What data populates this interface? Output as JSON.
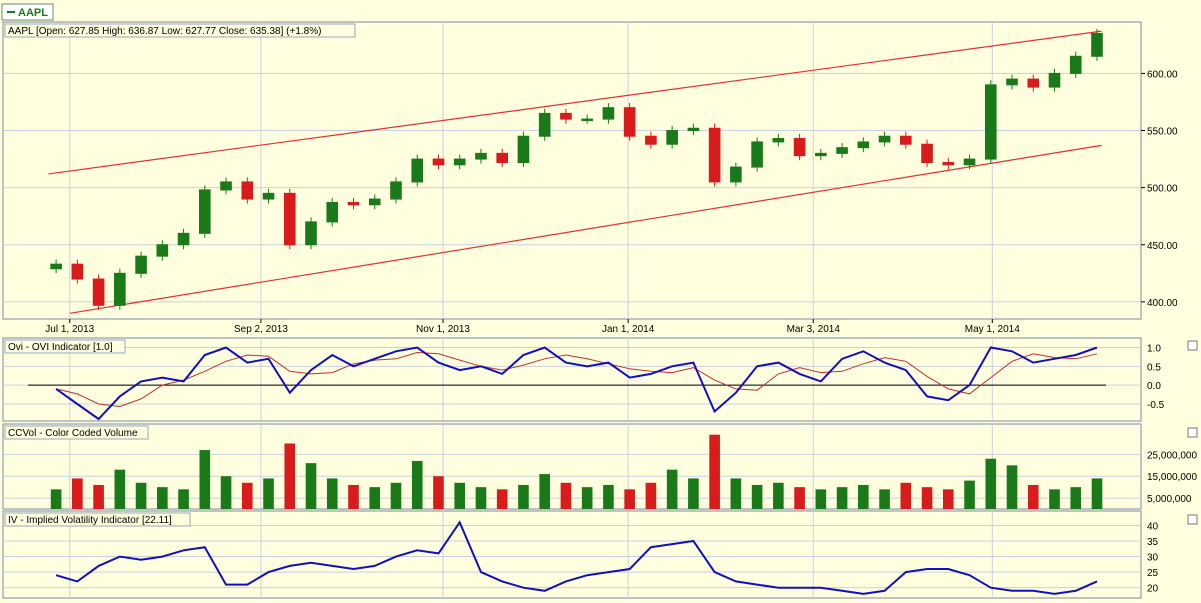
{
  "symbol_tab": "AAPL",
  "price_panel": {
    "label": "AAPL [Open: 627.85  High: 636.87  Low: 627.77  Close: 635.38] (+1.8%)",
    "y_ticks": [
      "600.00",
      "550.00",
      "500.00",
      "450.00",
      "400.00"
    ],
    "x_ticks": [
      "Jul 1, 2013",
      "Sep 2, 2013",
      "Nov 1, 2013",
      "Jan 1, 2014",
      "Mar 3, 2014",
      "May 1, 2014"
    ]
  },
  "ovi_panel": {
    "label": "Ovi - OVI Indicator [1.0]",
    "y_ticks": [
      "1.0",
      "0.5",
      "0.0",
      "-0.5"
    ]
  },
  "vol_panel": {
    "label": "CCVol - Color Coded Volume",
    "y_ticks": [
      "25,000,000",
      "15,000,000",
      "5,000,000"
    ]
  },
  "iv_panel": {
    "label": "IV - Implied Volatility Indicator [22.11]",
    "y_ticks": [
      "40",
      "35",
      "30",
      "25",
      "20"
    ]
  },
  "colors": {
    "up": "#1a7a1a",
    "down": "#d81b1b",
    "channel": "#e53030",
    "indicator": "#1010c0",
    "signal": "#c03030",
    "background": "#ffffe0",
    "grid": "#c8d0e0"
  },
  "chart_data": [
    {
      "type": "candlestick",
      "title": "AAPL",
      "x": [
        "2013-06-24",
        "2013-07-01",
        "2013-07-08",
        "2013-07-15",
        "2013-07-22",
        "2013-07-29",
        "2013-08-05",
        "2013-08-12",
        "2013-08-19",
        "2013-08-26",
        "2013-09-02",
        "2013-09-09",
        "2013-09-16",
        "2013-09-23",
        "2013-09-30",
        "2013-10-07",
        "2013-10-14",
        "2013-10-21",
        "2013-10-28",
        "2013-11-04",
        "2013-11-11",
        "2013-11-18",
        "2013-11-25",
        "2013-12-02",
        "2013-12-09",
        "2013-12-16",
        "2013-12-23",
        "2013-12-30",
        "2014-01-06",
        "2014-01-13",
        "2014-01-20",
        "2014-01-27",
        "2014-02-03",
        "2014-02-10",
        "2014-02-17",
        "2014-02-24",
        "2014-03-03",
        "2014-03-10",
        "2014-03-17",
        "2014-03-24",
        "2014-03-31",
        "2014-04-07",
        "2014-04-14",
        "2014-04-21",
        "2014-04-28",
        "2014-05-05",
        "2014-05-12",
        "2014-05-19",
        "2014-05-26",
        "2014-06-02"
      ],
      "close": [
        433,
        420,
        397,
        425,
        440,
        450,
        460,
        498,
        505,
        490,
        495,
        450,
        470,
        487,
        485,
        490,
        505,
        525,
        520,
        525,
        530,
        522,
        545,
        565,
        560,
        560,
        570,
        545,
        538,
        550,
        552,
        505,
        518,
        540,
        543,
        528,
        530,
        535,
        540,
        545,
        538,
        522,
        520,
        525,
        590,
        595,
        588,
        600,
        615,
        635
      ],
      "ylim": [
        385,
        645
      ],
      "channel_upper": {
        "x": [
          "2013-06-24",
          "2014-06-06"
        ],
        "y": [
          512,
          637
        ]
      },
      "channel_lower": {
        "x": [
          "2013-07-01",
          "2014-06-06"
        ],
        "y": [
          390,
          537
        ]
      }
    },
    {
      "type": "line",
      "title": "Ovi - OVI Indicator [1.0]",
      "series": [
        {
          "values": [
            -0.1,
            -0.5,
            -0.9,
            -0.3,
            0.1,
            0.2,
            0.1,
            0.8,
            1.0,
            0.6,
            0.7,
            -0.2,
            0.4,
            0.8,
            0.5,
            0.7,
            0.9,
            1.0,
            0.6,
            0.4,
            0.5,
            0.3,
            0.8,
            1.0,
            0.6,
            0.5,
            0.6,
            0.2,
            0.3,
            0.5,
            0.6,
            -0.7,
            -0.2,
            0.5,
            0.6,
            0.3,
            0.1,
            0.7,
            0.9,
            0.6,
            0.4,
            -0.3,
            -0.4,
            0.0,
            1.0,
            0.9,
            0.6,
            0.7,
            0.8,
            1.0
          ]
        }
      ],
      "ylim": [
        -0.9,
        1.2
      ]
    },
    {
      "type": "bar",
      "title": "CCVol - Color Coded Volume",
      "values": [
        9,
        14,
        11,
        18,
        12,
        10,
        9,
        27,
        15,
        12,
        14,
        30,
        21,
        14,
        11,
        10,
        12,
        22,
        15,
        12,
        10,
        9,
        11,
        16,
        12,
        10,
        11,
        9,
        12,
        18,
        14,
        34,
        14,
        11,
        12,
        10,
        9,
        10,
        11,
        9,
        12,
        10,
        9,
        13,
        23,
        20,
        11,
        9,
        10,
        14
      ],
      "ylim": [
        0,
        38000000
      ]
    },
    {
      "type": "line",
      "title": "IV - Implied Volatility Indicator [22.11]",
      "series": [
        {
          "values": [
            24,
            22,
            27,
            30,
            29,
            30,
            32,
            33,
            21,
            21,
            25,
            27,
            28,
            27,
            26,
            27,
            30,
            32,
            31,
            41,
            25,
            22,
            20,
            19,
            22,
            24,
            25,
            26,
            33,
            34,
            35,
            25,
            22,
            21,
            20,
            20,
            20,
            19,
            18,
            19,
            25,
            26,
            26,
            24,
            20,
            19,
            19,
            18,
            19,
            22
          ]
        }
      ],
      "ylim": [
        17,
        44
      ]
    }
  ]
}
